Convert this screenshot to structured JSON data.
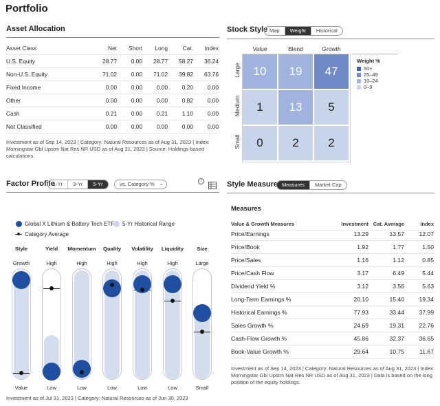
{
  "page_title": "Portfolio",
  "asset_allocation": {
    "title": "Asset Allocation",
    "columns": [
      "Asset Class",
      "Net",
      "Short",
      "Long",
      "Cat.",
      "Index"
    ],
    "rows": [
      [
        "U.S. Equity",
        "28.77",
        "0.00",
        "28.77",
        "58.27",
        "36.24"
      ],
      [
        "Non-U.S. Equity",
        "71.02",
        "0.00",
        "71.02",
        "39.82",
        "63.76"
      ],
      [
        "Fixed Income",
        "0.00",
        "0.00",
        "0.00",
        "0.20",
        "0.00"
      ],
      [
        "Other",
        "0.00",
        "0.00",
        "0.00",
        "0.82",
        "0.00"
      ],
      [
        "Cash",
        "0.21",
        "0.00",
        "0.21",
        "1.10",
        "0.00"
      ],
      [
        "Not Classified",
        "0.00",
        "0.00",
        "0.00",
        "0.00",
        "0.00"
      ]
    ],
    "footnote": "Investment as of Sep 14, 2023 | Category: Natural Resources as of Aug 31, 2023 | Index: Morningstar Gbl Upstm Nat Res NR USD as of Aug 31, 2023 | Source: Holdings-based calculations."
  },
  "stock_style": {
    "title": "Stock Style",
    "tabs": [
      "Map",
      "Weight",
      "Historical"
    ],
    "active_tab": "Weight",
    "columns": [
      "Value",
      "Blend",
      "Growth"
    ],
    "rows": [
      "Large",
      "Medium",
      "Small"
    ],
    "values": [
      [
        "10",
        "19",
        "47"
      ],
      [
        "1",
        "13",
        "5"
      ],
      [
        "0",
        "2",
        "2"
      ]
    ],
    "legend_title": "Weight %",
    "legend": [
      {
        "label": "50+",
        "color": "#3c5fa8"
      },
      {
        "label": "25–49",
        "color": "#6f8ac7"
      },
      {
        "label": "10–24",
        "color": "#9fb3de"
      },
      {
        "label": "0–9",
        "color": "#c8d4ea"
      }
    ]
  },
  "factor_profile": {
    "title": "Factor Profile",
    "periods": [
      "1-Yr",
      "3-Yr",
      "5-Yr"
    ],
    "active_period": "5-Yr",
    "compare_select": "vs. Category %",
    "legend": {
      "fund": "Global X Lithium & Battery Tech ETF",
      "range": "5-Yr Historical Range",
      "category": "Category Average"
    },
    "factors": [
      {
        "name": "Style",
        "high": "Growth",
        "low": "Value",
        "fund": 0.93,
        "category": 0.06,
        "range": [
          0.0,
          1.0
        ]
      },
      {
        "name": "Yield",
        "high": "High",
        "low": "Low",
        "fund": 0.04,
        "category": 0.82,
        "range": [
          0.0,
          0.42
        ]
      },
      {
        "name": "Momentum",
        "high": "High",
        "low": "Low",
        "fund": 0.07,
        "category": 0.07,
        "range": [
          0.0,
          1.0
        ]
      },
      {
        "name": "Quality",
        "high": "High",
        "low": "Low",
        "fund": 0.85,
        "category": 0.85,
        "range": [
          0.0,
          1.0
        ]
      },
      {
        "name": "Volatility",
        "high": "High",
        "low": "Low",
        "fund": 0.89,
        "category": 0.81,
        "range": [
          0.0,
          1.0
        ]
      },
      {
        "name": "Liquidity",
        "high": "High",
        "low": "Low",
        "fund": 0.89,
        "category": 0.71,
        "range": [
          0.0,
          1.0
        ]
      },
      {
        "name": "Size",
        "high": "Large",
        "low": "Small",
        "fund": 0.61,
        "category": 0.43,
        "range": [
          0.0,
          0.62
        ]
      }
    ],
    "footnote": "Investment as of Jul 31, 2023 | Category: Natural Resources as of Jun 30, 2023"
  },
  "style_measures": {
    "title": "Style Measures",
    "tabs": [
      "Measures",
      "Market Cap"
    ],
    "active_tab": "Measures",
    "subtitle": "Measures",
    "columns": [
      "Value & Growth Measures",
      "Investment",
      "Cat. Average",
      "Index"
    ],
    "rows": [
      [
        "Price/Earnings",
        "13.29",
        "13.57",
        "12.07"
      ],
      [
        "Price/Book",
        "1.92",
        "1.77",
        "1.50"
      ],
      [
        "Price/Sales",
        "1.16",
        "1.12",
        "0.85"
      ],
      [
        "Price/Cash Flow",
        "3.17",
        "6.49",
        "5.44"
      ],
      [
        "Dividend Yield %",
        "3.12",
        "3.56",
        "5.63"
      ],
      [
        "Long-Term Earnings %",
        "20.10",
        "15.40",
        "19.34"
      ],
      [
        "Historical Earnings %",
        "77.93",
        "33.44",
        "37.99"
      ],
      [
        "Sales Growth %",
        "24.69",
        "19.31",
        "22.76"
      ],
      [
        "Cash-Flow Growth %",
        "45.86",
        "32.37",
        "36.65"
      ],
      [
        "Book-Value Growth %",
        "29.64",
        "10.75",
        "11.67"
      ]
    ],
    "footnote": "Investment as of Sep 14, 2023 | Category: Natural Resources as of Aug 31, 2023 | Index: Morningstar Gbl Upstm Nat Res NR USD as of Aug 31, 2023 | Data is based on the long position of the equity holdings."
  }
}
